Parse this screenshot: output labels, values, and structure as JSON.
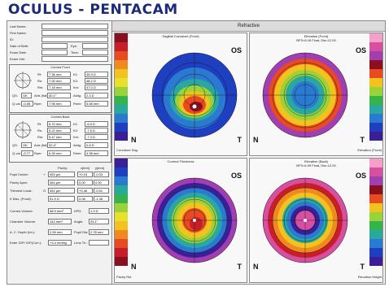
{
  "app": {
    "title": "OCULUS - PENTACAM"
  },
  "patient": {
    "fields": [
      {
        "label": "Last Name:",
        "value": ""
      },
      {
        "label": "First Name:",
        "value": ""
      },
      {
        "label": "ID:",
        "value": ""
      },
      {
        "label": "Date of Birth:",
        "value": ""
      },
      {
        "label": "Exam Date:",
        "value": ""
      },
      {
        "label": "Exam Info:",
        "value": ""
      }
    ],
    "eye_label": "Eye:",
    "time_label": "Time:"
  },
  "cornea_front": {
    "header": "Cornea Front",
    "rows": [
      {
        "l1": "Rf:",
        "v1": "7.36 mm",
        "l2": "K1:",
        "v2": "45.9 D"
      },
      {
        "l1": "Rs:",
        "v1": "7.00 mm",
        "l2": "K2:",
        "v2": "48.2 D"
      },
      {
        "l1": "Rm:",
        "v1": "7.18 mm",
        "l2": "Km:",
        "v2": "47.0 D"
      }
    ],
    "qs_label": "QS:",
    "qs_value": "OK",
    "axis_label": "Axis (flat):",
    "axis_value": "40.1°",
    "astig_label": "Astig:",
    "astig_value": "2.3 D",
    "q_label": "Q-val. (8mm):",
    "q_value": "-0.55",
    "rper_label": "Rper:",
    "rper_value": "7.98 mm",
    "rmin_label": "Rmin:",
    "rmin_value": "5.58 mm"
  },
  "cornea_back": {
    "header": "Cornea Back",
    "rows": [
      {
        "l1": "Rf:",
        "v1": "5.70 mm",
        "l2": "K1:",
        "v2": "-6.9 D"
      },
      {
        "l1": "Rs:",
        "v1": "5.22 mm",
        "l2": "K2:",
        "v2": "-7.6 D"
      },
      {
        "l1": "Rm:",
        "v1": "5.47 mm",
        "l2": "Km:",
        "v2": "-7.3 D"
      }
    ],
    "qs_label": "QS:",
    "qs_value": "OK",
    "axis_label": "Axis (flat):",
    "axis_value": "32.4°",
    "astig_label": "Astig:",
    "astig_value": "0.8 D",
    "q_label": "Q-val. (8mm):",
    "q_value": "-0.77",
    "rper_label": "Rper:",
    "rper_value": "6.39 mm",
    "rmin_label": "Rmin:",
    "rmin_value": "4.38 mm"
  },
  "pachy": {
    "col_headers": [
      "Pachy:",
      "x[mm]",
      "y[mm]"
    ],
    "rows": [
      {
        "label": "Pupil Center:",
        "sym": "+",
        "v": "453 µm",
        "x": "+0.15",
        "y": "-0.03"
      },
      {
        "label": "Pachy Apex:",
        "sym": "",
        "v": "464 µm",
        "x": "0.00",
        "y": "0.00"
      },
      {
        "label": "Thinnest Locat.:",
        "sym": "O",
        "v": "452 µm",
        "x": "+0.46",
        "y": "-0.51"
      },
      {
        "label": "K Max. (Front):",
        "sym": "",
        "v": "51.9 D",
        "x": "0.08",
        "y": "-1.36"
      }
    ]
  },
  "measures": [
    {
      "l1": "Cornea Volume:",
      "v1": "58.9 mm³",
      "l2": "KPD:",
      "v2": "1.3 D"
    },
    {
      "l1": "Chamber Volume:",
      "v1": "142 mm³",
      "l2": "Angle:",
      "v2": "25.1°"
    },
    {
      "l1": "A. C. Depth (Int.):",
      "v1": "2.59 mm",
      "l2": "Pupil Dia:",
      "v2": "2.78 mm"
    },
    {
      "l1": "Enter IOP/ IOP(Corr.):",
      "v1": "+3.4 mmHg",
      "l2": "Lens Th.:",
      "v2": ""
    }
  ],
  "main": {
    "title": "Refractive"
  },
  "maps": [
    {
      "title": "Sagittal Curvature (Front)",
      "subtitle": "",
      "eye": "OS",
      "n": "N",
      "t": "T",
      "scale_top": "",
      "scale_bottom": "Curvature Sag."
    },
    {
      "title": "Elevation (Front)",
      "subtitle": "BFS=8.18 Float, Dia=12.00",
      "eye": "OS",
      "n": "N",
      "t": "T",
      "scale_top": "",
      "scale_bottom": "Elevation (Front)"
    },
    {
      "title": "Corneal Thickness",
      "subtitle": "",
      "eye": "OS",
      "n": "N",
      "t": "T",
      "scale_top": "",
      "scale_bottom": "Pachy Rel."
    },
    {
      "title": "Elevation (Back)",
      "subtitle": "BFS=6.09 Float, Dia=12.00",
      "eye": "OS",
      "n": "N",
      "t": "T",
      "scale_top": "",
      "scale_bottom": "Elevation Height"
    }
  ],
  "colors": {
    "title": "#1b2a7a",
    "map_red": "#e02020",
    "map_blue": "#1b3fc7"
  }
}
